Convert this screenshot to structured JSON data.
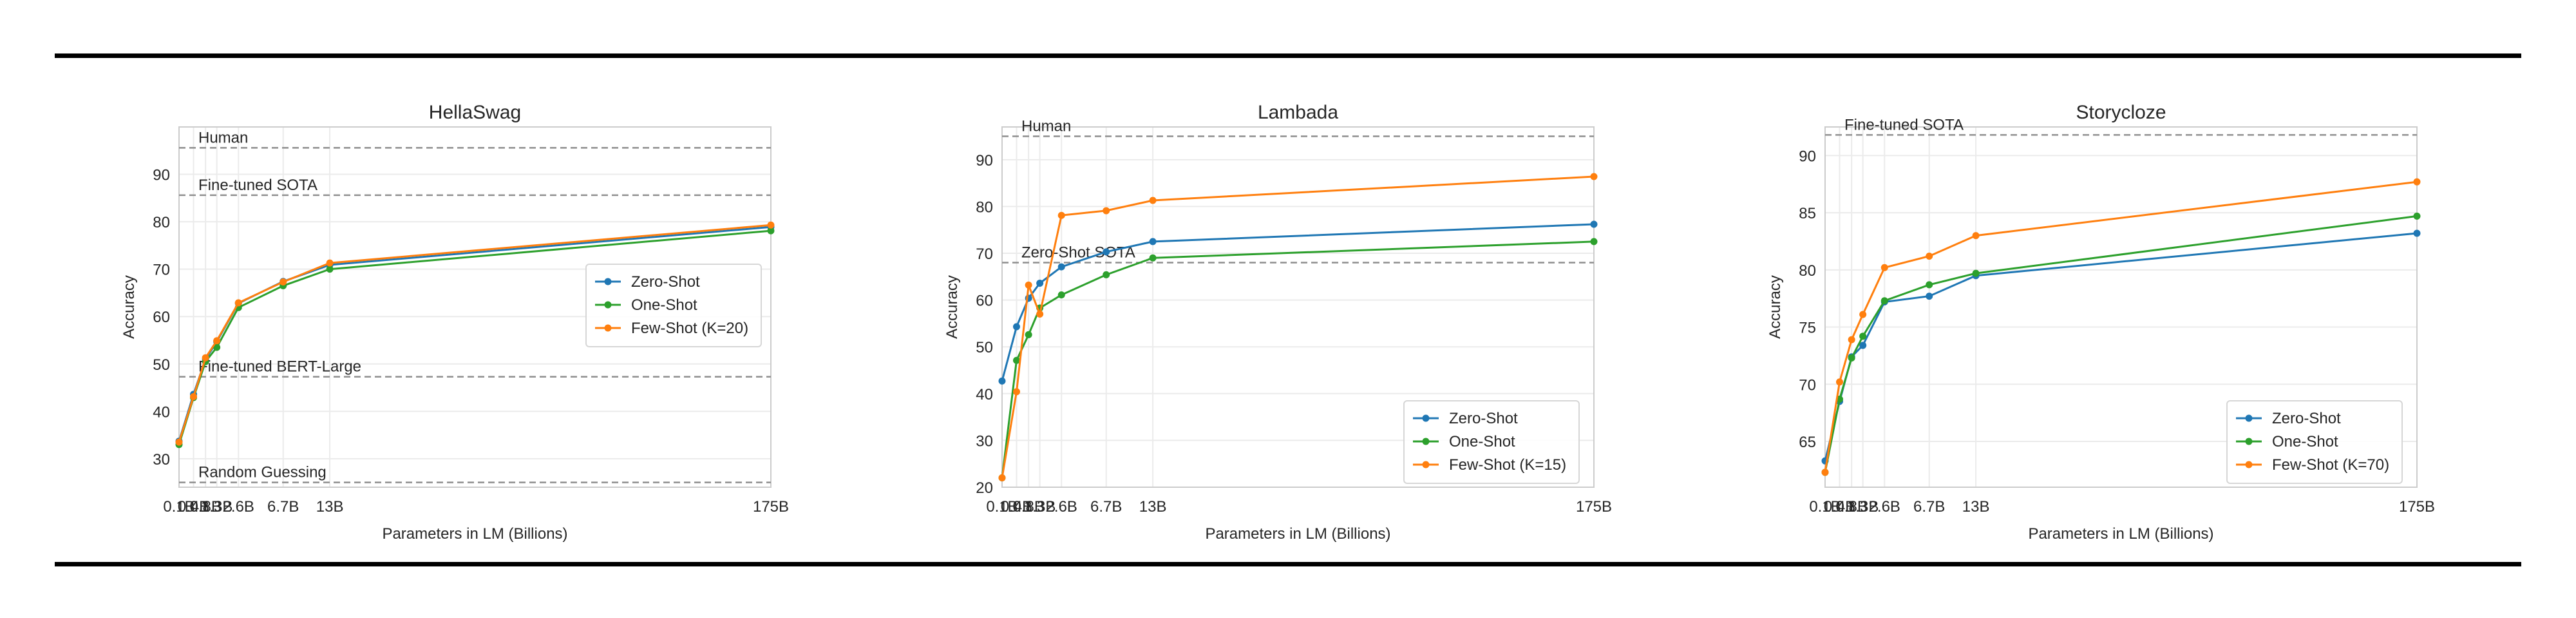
{
  "figure": {
    "colors": {
      "zero": "#1f77b4",
      "one": "#2ca02c",
      "few": "#ff7f0e",
      "ref": "#8f8f8f"
    },
    "x_ticks": [
      "0.1B",
      "0.4B",
      "0.8B",
      "1.3B",
      "2.6B",
      "6.7B",
      "13B",
      "175B"
    ],
    "x_label": "Parameters in LM (Billions)",
    "y_label": "Accuracy"
  },
  "chart_data": [
    {
      "type": "line",
      "title": "HellaSwag",
      "xlabel": "Parameters in LM (Billions)",
      "ylabel": "Accuracy",
      "categories": [
        "0.1B",
        "0.4B",
        "0.8B",
        "1.3B",
        "2.6B",
        "6.7B",
        "13B",
        "175B"
      ],
      "ylim": [
        24,
        100
      ],
      "yticks": [
        30,
        40,
        50,
        60,
        70,
        80,
        90
      ],
      "grid": true,
      "legend_position": "center-right",
      "series": [
        {
          "name": "Zero-Shot",
          "values": [
            33.7,
            43.6,
            51.0,
            54.7,
            62.8,
            67.4,
            70.9,
            78.9
          ]
        },
        {
          "name": "One-Shot",
          "values": [
            33.0,
            42.9,
            50.5,
            53.5,
            61.9,
            66.5,
            70.0,
            78.1
          ]
        },
        {
          "name": "Few-Shot (K=20)",
          "values": [
            33.5,
            43.1,
            51.3,
            54.9,
            62.9,
            67.3,
            71.3,
            79.3
          ]
        }
      ],
      "reference_lines": [
        {
          "label": "Human",
          "value": 95.6
        },
        {
          "label": "Fine-tuned SOTA",
          "value": 85.6
        },
        {
          "label": "Fine-tuned BERT-Large",
          "value": 47.3
        },
        {
          "label": "Random Guessing",
          "value": 25.0
        }
      ]
    },
    {
      "type": "line",
      "title": "Lambada",
      "xlabel": "Parameters in LM (Billions)",
      "ylabel": "Accuracy",
      "categories": [
        "0.1B",
        "0.4B",
        "0.8B",
        "1.3B",
        "2.6B",
        "6.7B",
        "13B",
        "175B"
      ],
      "ylim": [
        20,
        97
      ],
      "yticks": [
        20,
        30,
        40,
        50,
        60,
        70,
        80,
        90
      ],
      "grid": true,
      "legend_position": "bottom-right",
      "series": [
        {
          "name": "Zero-Shot",
          "values": [
            42.7,
            54.3,
            60.4,
            63.6,
            67.1,
            70.3,
            72.5,
            76.2
          ]
        },
        {
          "name": "One-Shot",
          "values": [
            22.0,
            47.1,
            52.6,
            58.3,
            61.1,
            65.4,
            69.0,
            72.5
          ]
        },
        {
          "name": "Few-Shot (K=15)",
          "values": [
            22.0,
            40.4,
            63.2,
            57.0,
            78.1,
            79.1,
            81.3,
            86.4
          ]
        }
      ],
      "reference_lines": [
        {
          "label": "Human",
          "value": 95.0
        },
        {
          "label": "Zero-Shot SOTA",
          "value": 68.0
        }
      ]
    },
    {
      "type": "line",
      "title": "Storycloze",
      "xlabel": "Parameters in LM (Billions)",
      "ylabel": "Accuracy",
      "categories": [
        "0.1B",
        "0.4B",
        "0.8B",
        "1.3B",
        "2.6B",
        "6.7B",
        "13B",
        "175B"
      ],
      "ylim": [
        61,
        92.5
      ],
      "yticks": [
        65,
        70,
        75,
        80,
        85,
        90
      ],
      "grid": true,
      "legend_position": "bottom-right",
      "series": [
        {
          "name": "Zero-Shot",
          "values": [
            63.3,
            68.5,
            72.4,
            73.4,
            77.2,
            77.7,
            79.5,
            83.2
          ]
        },
        {
          "name": "One-Shot",
          "values": [
            62.3,
            68.7,
            72.3,
            74.2,
            77.3,
            78.7,
            79.7,
            84.7
          ]
        },
        {
          "name": "Few-Shot (K=70)",
          "values": [
            62.3,
            70.2,
            73.9,
            76.1,
            80.2,
            81.2,
            83.0,
            87.7
          ]
        }
      ],
      "reference_lines": [
        {
          "label": "Fine-tuned SOTA",
          "value": 91.8
        }
      ]
    }
  ]
}
